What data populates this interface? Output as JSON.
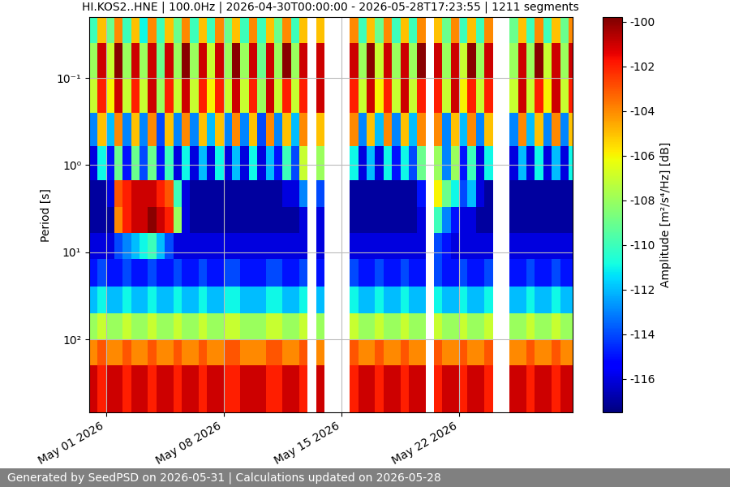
{
  "chart_data": {
    "type": "heatmap",
    "title": "HI.KOS2..HNE | 100.0Hz | 2026-04-30T00:00:00 - 2026-05-28T17:23:55 | 1211 segments",
    "y_label": "Period [s]",
    "footer": "Generated by SeedPSD on 2026-05-31 | Calculations updated on 2026-05-28",
    "log": "y",
    "grid": true,
    "xlim": [
      "2026-04-30T00:00:00",
      "2026-05-28T17:23:55"
    ],
    "xticks": [
      {
        "value": "2026-05-01T00:00:00",
        "label": "May 01 2026"
      },
      {
        "value": "2026-05-08T00:00:00",
        "label": "May 08 2026"
      },
      {
        "value": "2026-05-15T00:00:00",
        "label": "May 15 2026"
      },
      {
        "value": "2026-05-22T00:00:00",
        "label": "May 22 2026"
      }
    ],
    "ylim": [
      690,
      0.02
    ],
    "yticks": [
      {
        "value": 0.1,
        "label": "10⁻¹"
      },
      {
        "value": 1,
        "label": "10⁰"
      },
      {
        "value": 10,
        "label": "10¹"
      },
      {
        "value": 100,
        "label": "10²"
      }
    ],
    "colorbar": {
      "label": "Amplitude [m²/s⁴/Hz] [dB]",
      "range": [
        -117.5,
        -99.8
      ],
      "ticks": [
        -116,
        -114,
        -112,
        -110,
        -108,
        -106,
        -104,
        -102,
        -100
      ]
    },
    "x": [
      "2026-04-30T00:00",
      "2026-04-30T12:00",
      "2026-05-01T00:00",
      "2026-05-01T12:00",
      "2026-05-02T00:00",
      "2026-05-02T12:00",
      "2026-05-03T00:00",
      "2026-05-03T12:00",
      "2026-05-04T00:00",
      "2026-05-04T12:00",
      "2026-05-05T00:00",
      "2026-05-05T12:00",
      "2026-05-06T00:00",
      "2026-05-06T12:00",
      "2026-05-07T00:00",
      "2026-05-07T12:00",
      "2026-05-08T00:00",
      "2026-05-08T12:00",
      "2026-05-09T00:00",
      "2026-05-09T12:00",
      "2026-05-10T00:00",
      "2026-05-10T12:00",
      "2026-05-11T00:00",
      "2026-05-11T12:00",
      "2026-05-12T00:00",
      "2026-05-12T12:00",
      "2026-05-13T00:00",
      "2026-05-13T12:00",
      "2026-05-14T00:00",
      "2026-05-14T12:00",
      "2026-05-15T00:00",
      "2026-05-15T12:00",
      "2026-05-16T00:00",
      "2026-05-16T12:00",
      "2026-05-17T00:00",
      "2026-05-17T12:00",
      "2026-05-18T00:00",
      "2026-05-18T12:00",
      "2026-05-19T00:00",
      "2026-05-19T12:00",
      "2026-05-20T00:00",
      "2026-05-20T12:00",
      "2026-05-21T00:00",
      "2026-05-21T12:00",
      "2026-05-22T00:00",
      "2026-05-22T12:00",
      "2026-05-23T00:00",
      "2026-05-23T12:00",
      "2026-05-24T00:00",
      "2026-05-24T12:00",
      "2026-05-25T00:00",
      "2026-05-25T12:00",
      "2026-05-26T00:00",
      "2026-05-26T12:00",
      "2026-05-27T00:00",
      "2026-05-27T12:00",
      "2026-05-28T00:00",
      "2026-05-28T12:00"
    ],
    "period_edges": [
      0.02,
      0.04,
      0.1,
      0.25,
      0.6,
      1.5,
      3,
      6,
      12,
      25,
      50,
      100,
      200,
      690
    ],
    "cells": [
      [
        -110,
        -105,
        -109,
        -104,
        -110,
        -105,
        -111,
        -104,
        -110,
        -105,
        -109,
        -104,
        -110,
        -105,
        -110,
        -104,
        -109,
        -105,
        -110,
        -104,
        -110,
        -105,
        -109,
        -104,
        -110,
        -105,
        null,
        -105,
        null,
        null,
        null,
        -104,
        -110,
        -105,
        -109,
        -104,
        -110,
        -105,
        -110,
        -104,
        null,
        -105,
        -109,
        -104,
        -110,
        -105,
        -110,
        -104,
        null,
        null,
        -109,
        -105,
        -110,
        -104,
        -110,
        -105,
        -109,
        -104
      ],
      [
        -108,
        -101,
        -107,
        -100,
        -108,
        -101,
        -108,
        -101,
        -109,
        -101,
        -108,
        -100,
        -108,
        -101,
        -107,
        -101,
        -108,
        -100,
        -108,
        -101,
        -109,
        -101,
        -108,
        -100,
        -108,
        -101,
        null,
        -101,
        null,
        null,
        null,
        -101,
        -108,
        -100,
        -107,
        -101,
        -108,
        -101,
        -108,
        -100,
        null,
        -101,
        -108,
        -101,
        -107,
        -100,
        -108,
        -101,
        null,
        null,
        -108,
        -101,
        -108,
        -100,
        -107,
        -101,
        -108,
        -101
      ],
      [
        -107,
        -102,
        -106,
        -101,
        -107,
        -102,
        -107,
        -101,
        -108,
        -102,
        -107,
        -101,
        -107,
        -102,
        -106,
        -102,
        -107,
        -101,
        -107,
        -102,
        -108,
        -101,
        -107,
        -102,
        -107,
        -102,
        null,
        -101,
        null,
        null,
        null,
        -102,
        -107,
        -101,
        -106,
        -102,
        -107,
        -101,
        -107,
        -102,
        null,
        -102,
        -107,
        -101,
        -106,
        -102,
        -107,
        -102,
        null,
        null,
        -107,
        -101,
        -107,
        -102,
        -106,
        -101,
        -107,
        -102
      ],
      [
        -113,
        -105,
        -112,
        -104,
        -113,
        -105,
        -113,
        -104,
        -114,
        -105,
        -113,
        -104,
        -113,
        -105,
        -112,
        -105,
        -113,
        -104,
        -113,
        -105,
        -114,
        -104,
        -113,
        -105,
        -112,
        -104,
        null,
        -105,
        null,
        null,
        null,
        -104,
        -113,
        -105,
        -112,
        -104,
        -113,
        -105,
        -112,
        -104,
        null,
        -104,
        -113,
        -105,
        -112,
        -104,
        -113,
        -105,
        null,
        null,
        -113,
        -104,
        -112,
        -105,
        -113,
        -104,
        -113,
        -105
      ],
      [
        -116,
        -111,
        -115,
        -109,
        -115,
        -109,
        -114,
        -109,
        -115,
        -110,
        -116,
        -111,
        -116,
        -112,
        -116,
        -111,
        -116,
        -112,
        -116,
        -111,
        -116,
        -112,
        -115,
        -110,
        -114,
        -107,
        null,
        -108,
        null,
        null,
        null,
        -111,
        -116,
        -112,
        -116,
        -111,
        -115,
        -111,
        -114,
        -109,
        null,
        -108,
        -113,
        -108,
        -115,
        -110,
        -116,
        -111,
        null,
        null,
        -116,
        -112,
        -116,
        -111,
        -116,
        -112,
        -116,
        -111
      ],
      [
        -117,
        -117,
        -116,
        -103,
        -102,
        -101,
        -101,
        -101,
        -102,
        -103,
        -110,
        -116,
        -117,
        -117,
        -117,
        -117,
        -117,
        -117,
        -117,
        -117,
        -117,
        -117,
        -117,
        -116,
        -116,
        -113,
        null,
        -114,
        null,
        null,
        null,
        -117,
        -117,
        -117,
        -117,
        -117,
        -117,
        -117,
        -117,
        -115,
        null,
        -106,
        -109,
        -111,
        -114,
        -112,
        -116,
        -117,
        null,
        null,
        -117,
        -117,
        -117,
        -117,
        -117,
        -117,
        -117,
        -117
      ],
      [
        -117,
        -117,
        -117,
        -104,
        -102,
        -101,
        -101,
        -100,
        -101,
        -102,
        -108,
        -116,
        -117,
        -117,
        -117,
        -117,
        -117,
        -117,
        -117,
        -117,
        -117,
        -117,
        -117,
        -117,
        -117,
        -116,
        null,
        -116,
        null,
        null,
        null,
        -117,
        -117,
        -117,
        -117,
        -117,
        -117,
        -117,
        -117,
        -116,
        null,
        -110,
        -113,
        -115,
        -116,
        -116,
        -117,
        -117,
        null,
        null,
        -117,
        -117,
        -117,
        -117,
        -117,
        -117,
        -117,
        -117
      ],
      [
        -116,
        -116,
        -116,
        -114,
        -113,
        -112,
        -111,
        -110,
        -112,
        -114,
        -116,
        -116,
        -116,
        -116,
        -116,
        -116,
        -116,
        -116,
        -116,
        -116,
        -116,
        -116,
        -116,
        -116,
        -116,
        -116,
        null,
        -116,
        null,
        null,
        null,
        -116,
        -116,
        -116,
        -116,
        -116,
        -116,
        -116,
        -116,
        -116,
        null,
        -114,
        -115,
        -116,
        -116,
        -116,
        -116,
        -116,
        null,
        null,
        -116,
        -116,
        -116,
        -116,
        -116,
        -116,
        -116,
        -116
      ],
      [
        -115,
        -114,
        -115,
        -115,
        -114,
        -115,
        -115,
        -114,
        -115,
        -115,
        -114,
        -115,
        -115,
        -114,
        -115,
        -115,
        -114,
        -114,
        -115,
        -115,
        -115,
        -114,
        -114,
        -115,
        -115,
        -114,
        null,
        -115,
        null,
        null,
        null,
        -114,
        -115,
        -115,
        -114,
        -115,
        -115,
        -114,
        -115,
        -115,
        null,
        -114,
        -115,
        -115,
        -114,
        -115,
        -115,
        -114,
        null,
        null,
        -115,
        -115,
        -114,
        -115,
        -115,
        -114,
        -115,
        -115
      ],
      [
        -112,
        -111,
        -112,
        -112,
        -111,
        -112,
        -112,
        -111,
        -112,
        -112,
        -111,
        -112,
        -112,
        -111,
        -112,
        -112,
        -111,
        -111,
        -112,
        -112,
        -112,
        -111,
        -111,
        -112,
        -112,
        -111,
        null,
        -112,
        null,
        null,
        null,
        -111,
        -112,
        -112,
        -111,
        -112,
        -112,
        -111,
        -112,
        -112,
        null,
        -111,
        -112,
        -112,
        -111,
        -112,
        -112,
        -111,
        null,
        null,
        -112,
        -112,
        -111,
        -112,
        -112,
        -111,
        -112,
        -112
      ],
      [
        -108,
        -107,
        -108,
        -108,
        -107,
        -108,
        -108,
        -107,
        -108,
        -108,
        -107,
        -108,
        -108,
        -107,
        -108,
        -108,
        -107,
        -107,
        -108,
        -108,
        -108,
        -107,
        -107,
        -108,
        -108,
        -107,
        null,
        -108,
        null,
        null,
        null,
        -107,
        -108,
        -108,
        -107,
        -108,
        -108,
        -107,
        -108,
        -108,
        null,
        -107,
        -108,
        -108,
        -107,
        -108,
        -108,
        -107,
        null,
        null,
        -108,
        -108,
        -107,
        -108,
        -108,
        -107,
        -108,
        -108
      ],
      [
        -104,
        -103,
        -104,
        -104,
        -103,
        -104,
        -104,
        -103,
        -104,
        -104,
        -103,
        -104,
        -104,
        -103,
        -104,
        -104,
        -103,
        -103,
        -104,
        -104,
        -104,
        -103,
        -103,
        -104,
        -104,
        -103,
        null,
        -104,
        null,
        null,
        null,
        -103,
        -104,
        -104,
        -103,
        -104,
        -104,
        -103,
        -104,
        -104,
        null,
        -103,
        -104,
        -104,
        -103,
        -104,
        -104,
        -103,
        null,
        null,
        -104,
        -104,
        -103,
        -104,
        -104,
        -103,
        -104,
        -104
      ],
      [
        -101,
        -102,
        -101,
        -101,
        -102,
        -101,
        -101,
        -102,
        -101,
        -101,
        -102,
        -101,
        -101,
        -102,
        -101,
        -101,
        -102,
        -102,
        -101,
        -101,
        -101,
        -102,
        -102,
        -101,
        -101,
        -102,
        null,
        -101,
        null,
        null,
        null,
        -102,
        -101,
        -101,
        -102,
        -101,
        -101,
        -102,
        -101,
        -101,
        null,
        -102,
        -101,
        -101,
        -102,
        -101,
        -101,
        -102,
        null,
        null,
        -101,
        -101,
        -102,
        -101,
        -101,
        -102,
        -101,
        -101
      ]
    ]
  }
}
